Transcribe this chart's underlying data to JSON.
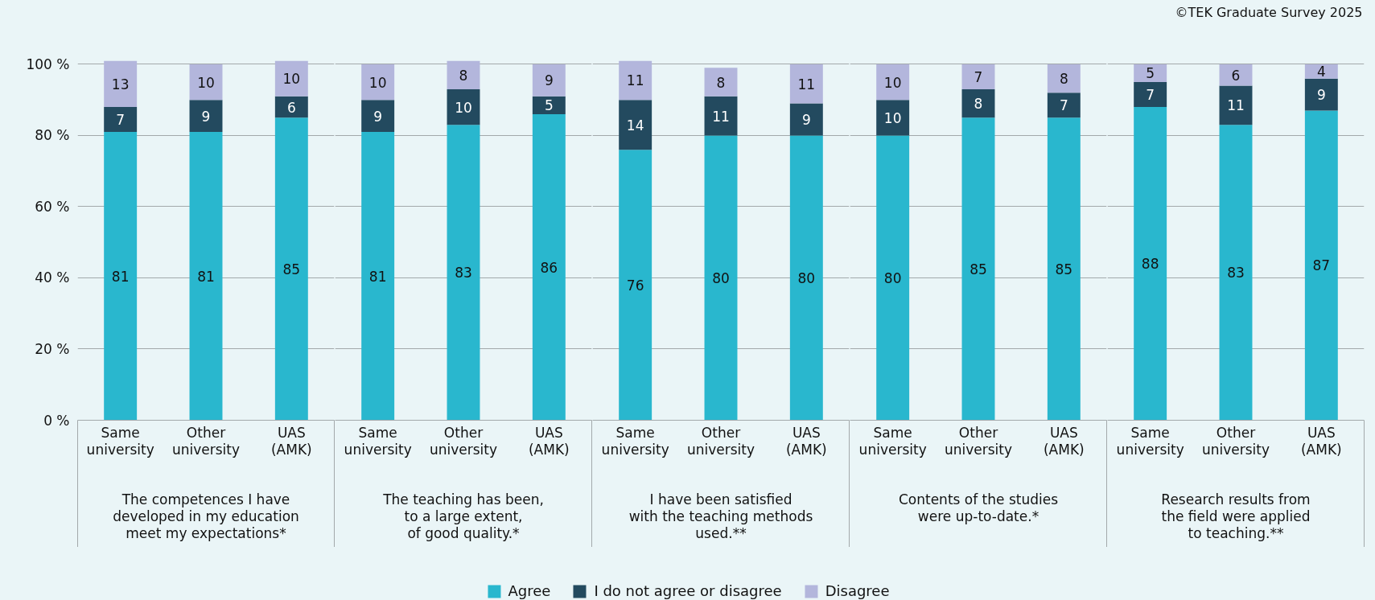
{
  "chart_data": [
    {
      "type": "bar",
      "stacked": true,
      "categories": [
        "Same\nuniversity",
        "Other\nuniversity",
        "UAS\n(AMK)"
      ],
      "xlabel": "The competences I have\ndeveloped in my education\nmeet my expectations*",
      "series": [
        {
          "name": "Agree",
          "color": "#29b7ce",
          "values": [
            81,
            81,
            85
          ]
        },
        {
          "name": "I do not agree or disagree",
          "color": "#234a5f",
          "values": [
            7,
            9,
            6
          ]
        },
        {
          "name": "Disagree",
          "color": "#b3b6dc",
          "values": [
            13,
            10,
            10
          ]
        }
      ],
      "ylim": [
        0,
        101
      ],
      "yticks": [
        {
          "value": 0,
          "label": "0 %"
        },
        {
          "value": 20,
          "label": "20 %"
        },
        {
          "value": 40,
          "label": "40 %"
        },
        {
          "value": 60,
          "label": "60 %"
        },
        {
          "value": 80,
          "label": "80 %"
        },
        {
          "value": 100,
          "label": "100 %"
        }
      ],
      "grid": "y",
      "data_labels": true,
      "legend": "bottom"
    },
    {
      "type": "bar",
      "stacked": true,
      "categories": [
        "Same\nuniversity",
        "Other\nuniversity",
        "UAS\n(AMK)"
      ],
      "xlabel": "The teaching has been,\nto a large extent,\nof good quality.*",
      "series": [
        {
          "color": "#29b7ce",
          "values": [
            81,
            83,
            86
          ]
        },
        {
          "color": "#234a5f",
          "values": [
            9,
            10,
            5
          ]
        },
        {
          "color": "#b3b6dc",
          "values": [
            10,
            8,
            9
          ]
        }
      ],
      "ylim": [
        0,
        101
      ],
      "yticks": [
        0,
        20,
        40,
        60,
        80,
        100
      ],
      "grid": "y",
      "tick_labels": "x",
      "data_labels": true
    },
    {
      "type": "bar",
      "stacked": true,
      "categories": [
        "Same\nuniversity",
        "Other\nuniversity",
        "UAS\n(AMK)"
      ],
      "xlabel": "I have been satisfied\nwith the teaching methods\nused.**",
      "series": [
        {
          "color": "#29b7ce",
          "values": [
            76,
            80,
            80
          ]
        },
        {
          "color": "#234a5f",
          "values": [
            14,
            11,
            9
          ]
        },
        {
          "color": "#b3b6dc",
          "values": [
            11,
            8,
            11
          ]
        }
      ],
      "ylim": [
        0,
        101
      ],
      "yticks": [
        0,
        20,
        40,
        60,
        80,
        100
      ],
      "grid": "y",
      "tick_labels": "x",
      "data_labels": true
    },
    {
      "type": "bar",
      "stacked": true,
      "categories": [
        "Same\nuniversity",
        "Other\nuniversity",
        "UAS\n(AMK)"
      ],
      "xlabel": "Contents of the studies\nwere up-to-date.*",
      "series": [
        {
          "color": "#29b7ce",
          "values": [
            80,
            85,
            85
          ]
        },
        {
          "color": "#234a5f",
          "values": [
            10,
            8,
            7
          ]
        },
        {
          "color": "#b3b6dc",
          "values": [
            10,
            7,
            8
          ]
        }
      ],
      "yticks": [
        0,
        20,
        40,
        60,
        80,
        100
      ],
      "grid": "y",
      "tick_labels": "x",
      "data_labels": true
    },
    {
      "type": "bar",
      "stacked": true,
      "categories": [
        "Same\nuniversity",
        "Other\nuniversity",
        "UAS\n(AMK)"
      ],
      "xlabel": "Research results from\nthe field were applied\nto teaching.**",
      "series": [
        {
          "color": "#29b7ce",
          "values": [
            88,
            83,
            87
          ]
        },
        {
          "color": "#234a5f",
          "values": [
            7,
            11,
            9
          ]
        },
        {
          "color": "#b3b6dc",
          "values": [
            5,
            6,
            4
          ]
        }
      ],
      "yticks": [
        0,
        20,
        40,
        60,
        80,
        100
      ],
      "grid": "y",
      "tick_labels": "x",
      "data_labels": true,
      "annotations": [
        "©TEK Graduate Survey 2025"
      ]
    }
  ]
}
